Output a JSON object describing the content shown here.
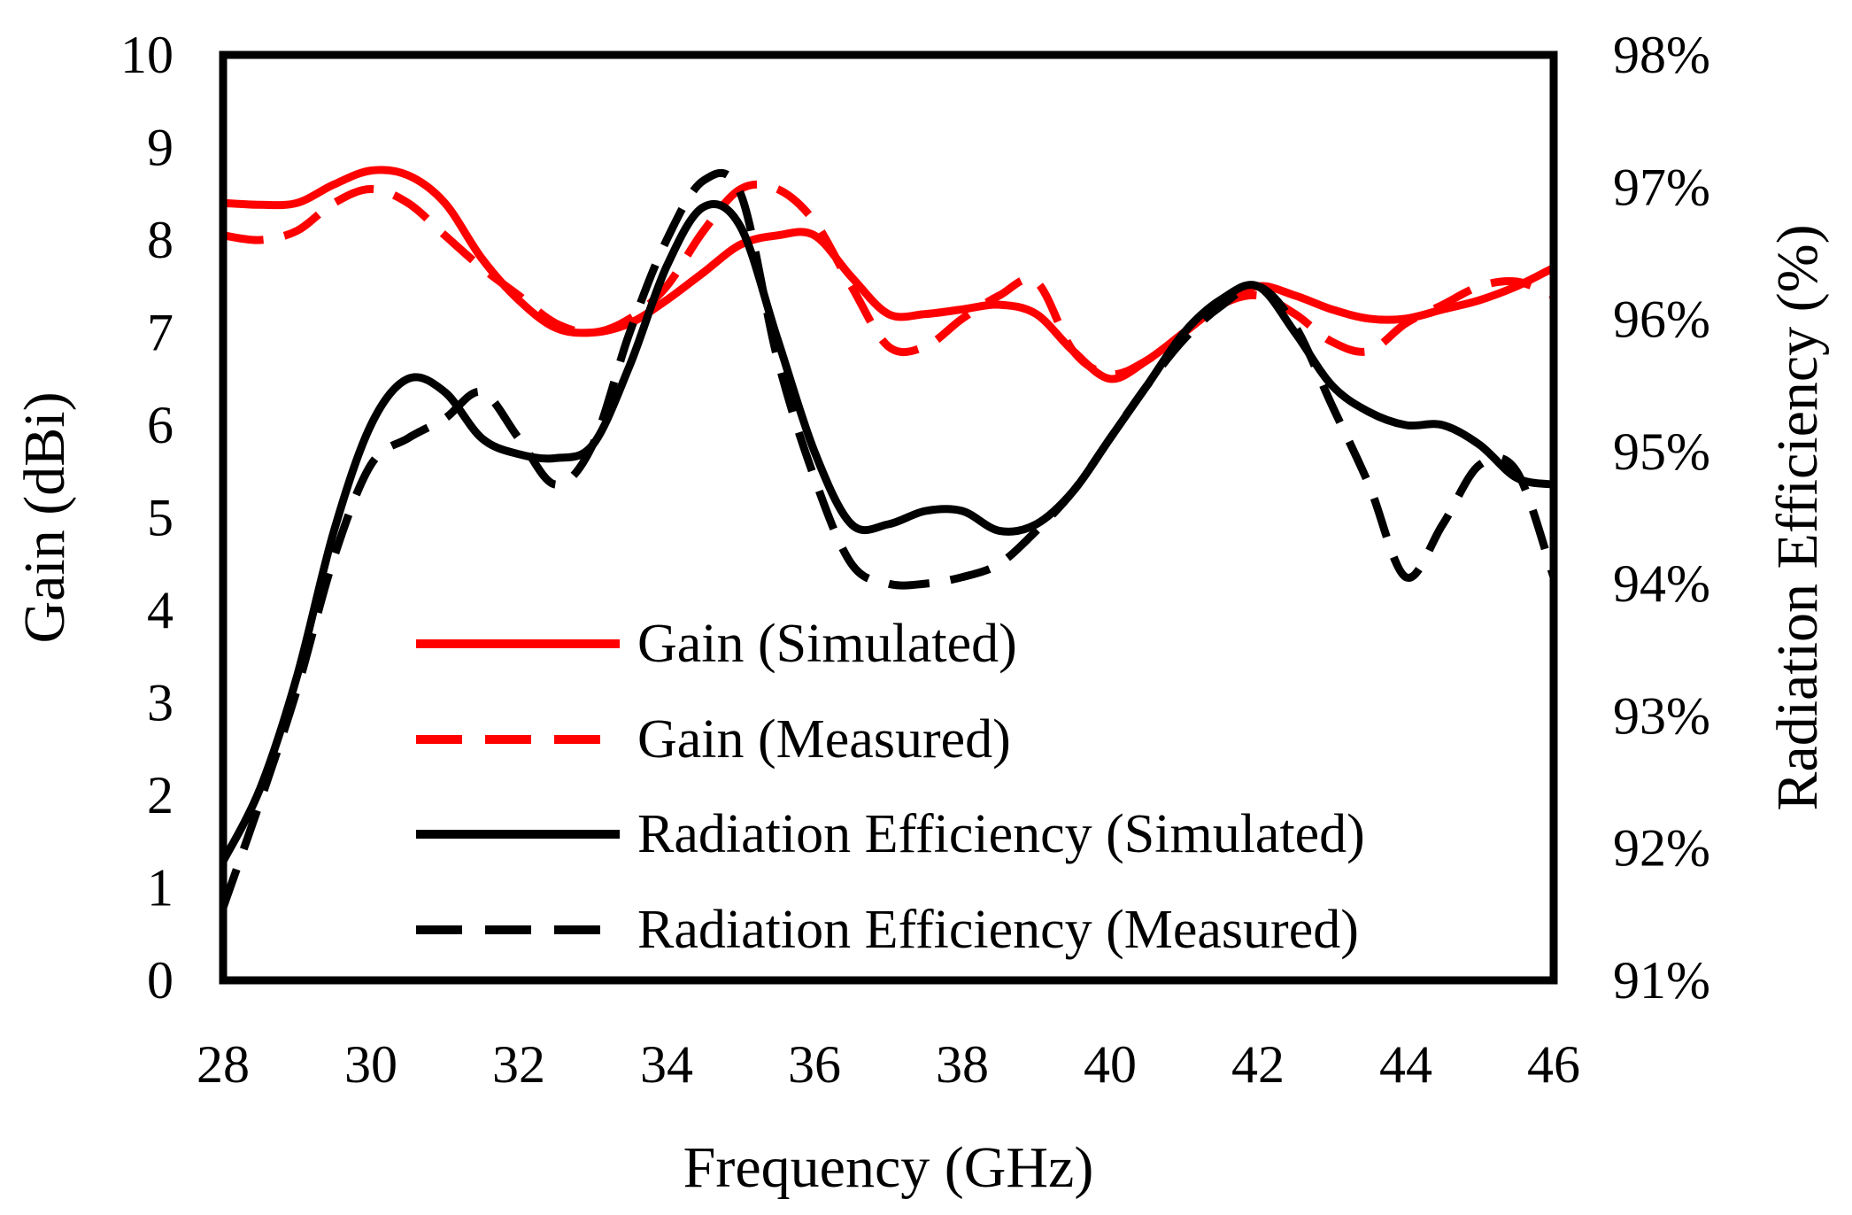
{
  "chart_data": {
    "type": "line",
    "title": "",
    "xlabel": "Frequency (GHz)",
    "ylabel": "Gain (dBi)",
    "y2label": "Radiation Efficiency (%)",
    "xlim": [
      28,
      46
    ],
    "ylim": [
      0,
      10
    ],
    "y2lim": [
      91,
      98
    ],
    "xticks": [
      "28",
      "30",
      "32",
      "34",
      "36",
      "38",
      "40",
      "42",
      "44",
      "46"
    ],
    "xtick_values": [
      28,
      30,
      32,
      34,
      36,
      38,
      40,
      42,
      44,
      46
    ],
    "yticks": [
      "0",
      "1",
      "2",
      "3",
      "4",
      "5",
      "6",
      "7",
      "8",
      "9",
      "10"
    ],
    "ytick_values": [
      0,
      1,
      2,
      3,
      4,
      5,
      6,
      7,
      8,
      9,
      10
    ],
    "y2ticks": [
      "91%",
      "92%",
      "93%",
      "94%",
      "95%",
      "96%",
      "97%",
      "98%"
    ],
    "y2tick_values": [
      91,
      92,
      93,
      94,
      95,
      96,
      97,
      98
    ],
    "legend_position": "center",
    "grid": false,
    "series": [
      {
        "name": "Gain (Simulated)",
        "axis": "left",
        "color": "#ff0000",
        "dash": "solid",
        "x": [
          28,
          28.5,
          29,
          29.5,
          30,
          30.5,
          31,
          31.5,
          32,
          32.5,
          33,
          33.5,
          34,
          34.5,
          35,
          35.5,
          36,
          36.5,
          37,
          37.5,
          38,
          38.5,
          39,
          39.5,
          40,
          40.5,
          41,
          41.5,
          42,
          42.5,
          43,
          43.5,
          44,
          44.5,
          45,
          45.5,
          46
        ],
        "values": [
          8.4,
          8.38,
          8.4,
          8.6,
          8.75,
          8.7,
          8.4,
          7.8,
          7.35,
          7.05,
          7.0,
          7.1,
          7.35,
          7.65,
          7.95,
          8.05,
          8.05,
          7.6,
          7.2,
          7.2,
          7.25,
          7.3,
          7.2,
          6.8,
          6.5,
          6.7,
          7.0,
          7.3,
          7.5,
          7.4,
          7.25,
          7.15,
          7.15,
          7.25,
          7.35,
          7.5,
          7.7
        ]
      },
      {
        "name": "Gain (Measured)",
        "axis": "left",
        "color": "#ff0000",
        "dash": "dashed",
        "x": [
          28,
          28.5,
          29,
          29.5,
          30,
          30.5,
          31,
          31.5,
          32,
          32.5,
          33,
          33.5,
          34,
          34.5,
          35,
          35.5,
          36,
          36.5,
          37,
          37.5,
          38,
          38.5,
          39,
          39.5,
          40,
          40.5,
          41,
          41.5,
          42,
          42.5,
          43,
          43.5,
          44,
          44.5,
          45,
          45.5,
          46
        ],
        "values": [
          8.05,
          8.0,
          8.1,
          8.4,
          8.55,
          8.4,
          8.05,
          7.7,
          7.4,
          7.1,
          7.0,
          7.15,
          7.5,
          8.1,
          8.55,
          8.55,
          8.2,
          7.5,
          6.85,
          6.85,
          7.15,
          7.4,
          7.55,
          6.8,
          6.55,
          6.7,
          7.0,
          7.3,
          7.4,
          7.2,
          6.9,
          6.8,
          7.1,
          7.3,
          7.5,
          7.55,
          7.4
        ]
      },
      {
        "name": "Radiation Efficiency (Simulated)",
        "axis": "right",
        "color": "#000000",
        "dash": "solid",
        "x": [
          28,
          28.5,
          29,
          29.5,
          30,
          30.5,
          31,
          31.5,
          32,
          32.5,
          33,
          33.5,
          34,
          34.5,
          35,
          35.5,
          36,
          36.5,
          37,
          37.5,
          38,
          38.5,
          39,
          39.5,
          40,
          40.5,
          41,
          41.5,
          42,
          42.5,
          43,
          43.5,
          44,
          44.5,
          45,
          45.5,
          46
        ],
        "values": [
          91.9,
          92.45,
          93.3,
          94.4,
          95.2,
          95.55,
          95.45,
          95.1,
          94.98,
          94.95,
          95.05,
          95.65,
          96.4,
          96.85,
          96.7,
          95.85,
          95.0,
          94.45,
          94.45,
          94.55,
          94.55,
          94.4,
          94.45,
          94.7,
          95.1,
          95.5,
          95.9,
          96.15,
          96.25,
          95.9,
          95.5,
          95.3,
          95.2,
          95.2,
          95.05,
          94.8,
          94.75
        ]
      },
      {
        "name": "Radiation Efficiency (Measured)",
        "axis": "right",
        "color": "#000000",
        "dash": "dashed",
        "x": [
          28,
          28.5,
          29,
          29.5,
          30,
          30.5,
          31,
          31.5,
          32,
          32.5,
          33,
          33.5,
          34,
          34.5,
          35,
          35.5,
          36,
          36.5,
          37,
          37.5,
          38,
          38.5,
          39,
          39.5,
          40,
          40.5,
          41,
          41.5,
          42,
          42.5,
          43,
          43.5,
          44,
          44.5,
          45,
          45.5,
          46
        ],
        "values": [
          91.55,
          92.35,
          93.2,
          94.2,
          94.9,
          95.1,
          95.25,
          95.45,
          95.1,
          94.75,
          95.05,
          95.9,
          96.6,
          97.05,
          96.95,
          95.7,
          94.8,
          94.15,
          94.0,
          94.0,
          94.05,
          94.15,
          94.4,
          94.7,
          95.1,
          95.5,
          95.85,
          96.1,
          96.25,
          95.95,
          95.35,
          94.75,
          94.05,
          94.45,
          94.9,
          94.85,
          94.05
        ]
      }
    ]
  }
}
